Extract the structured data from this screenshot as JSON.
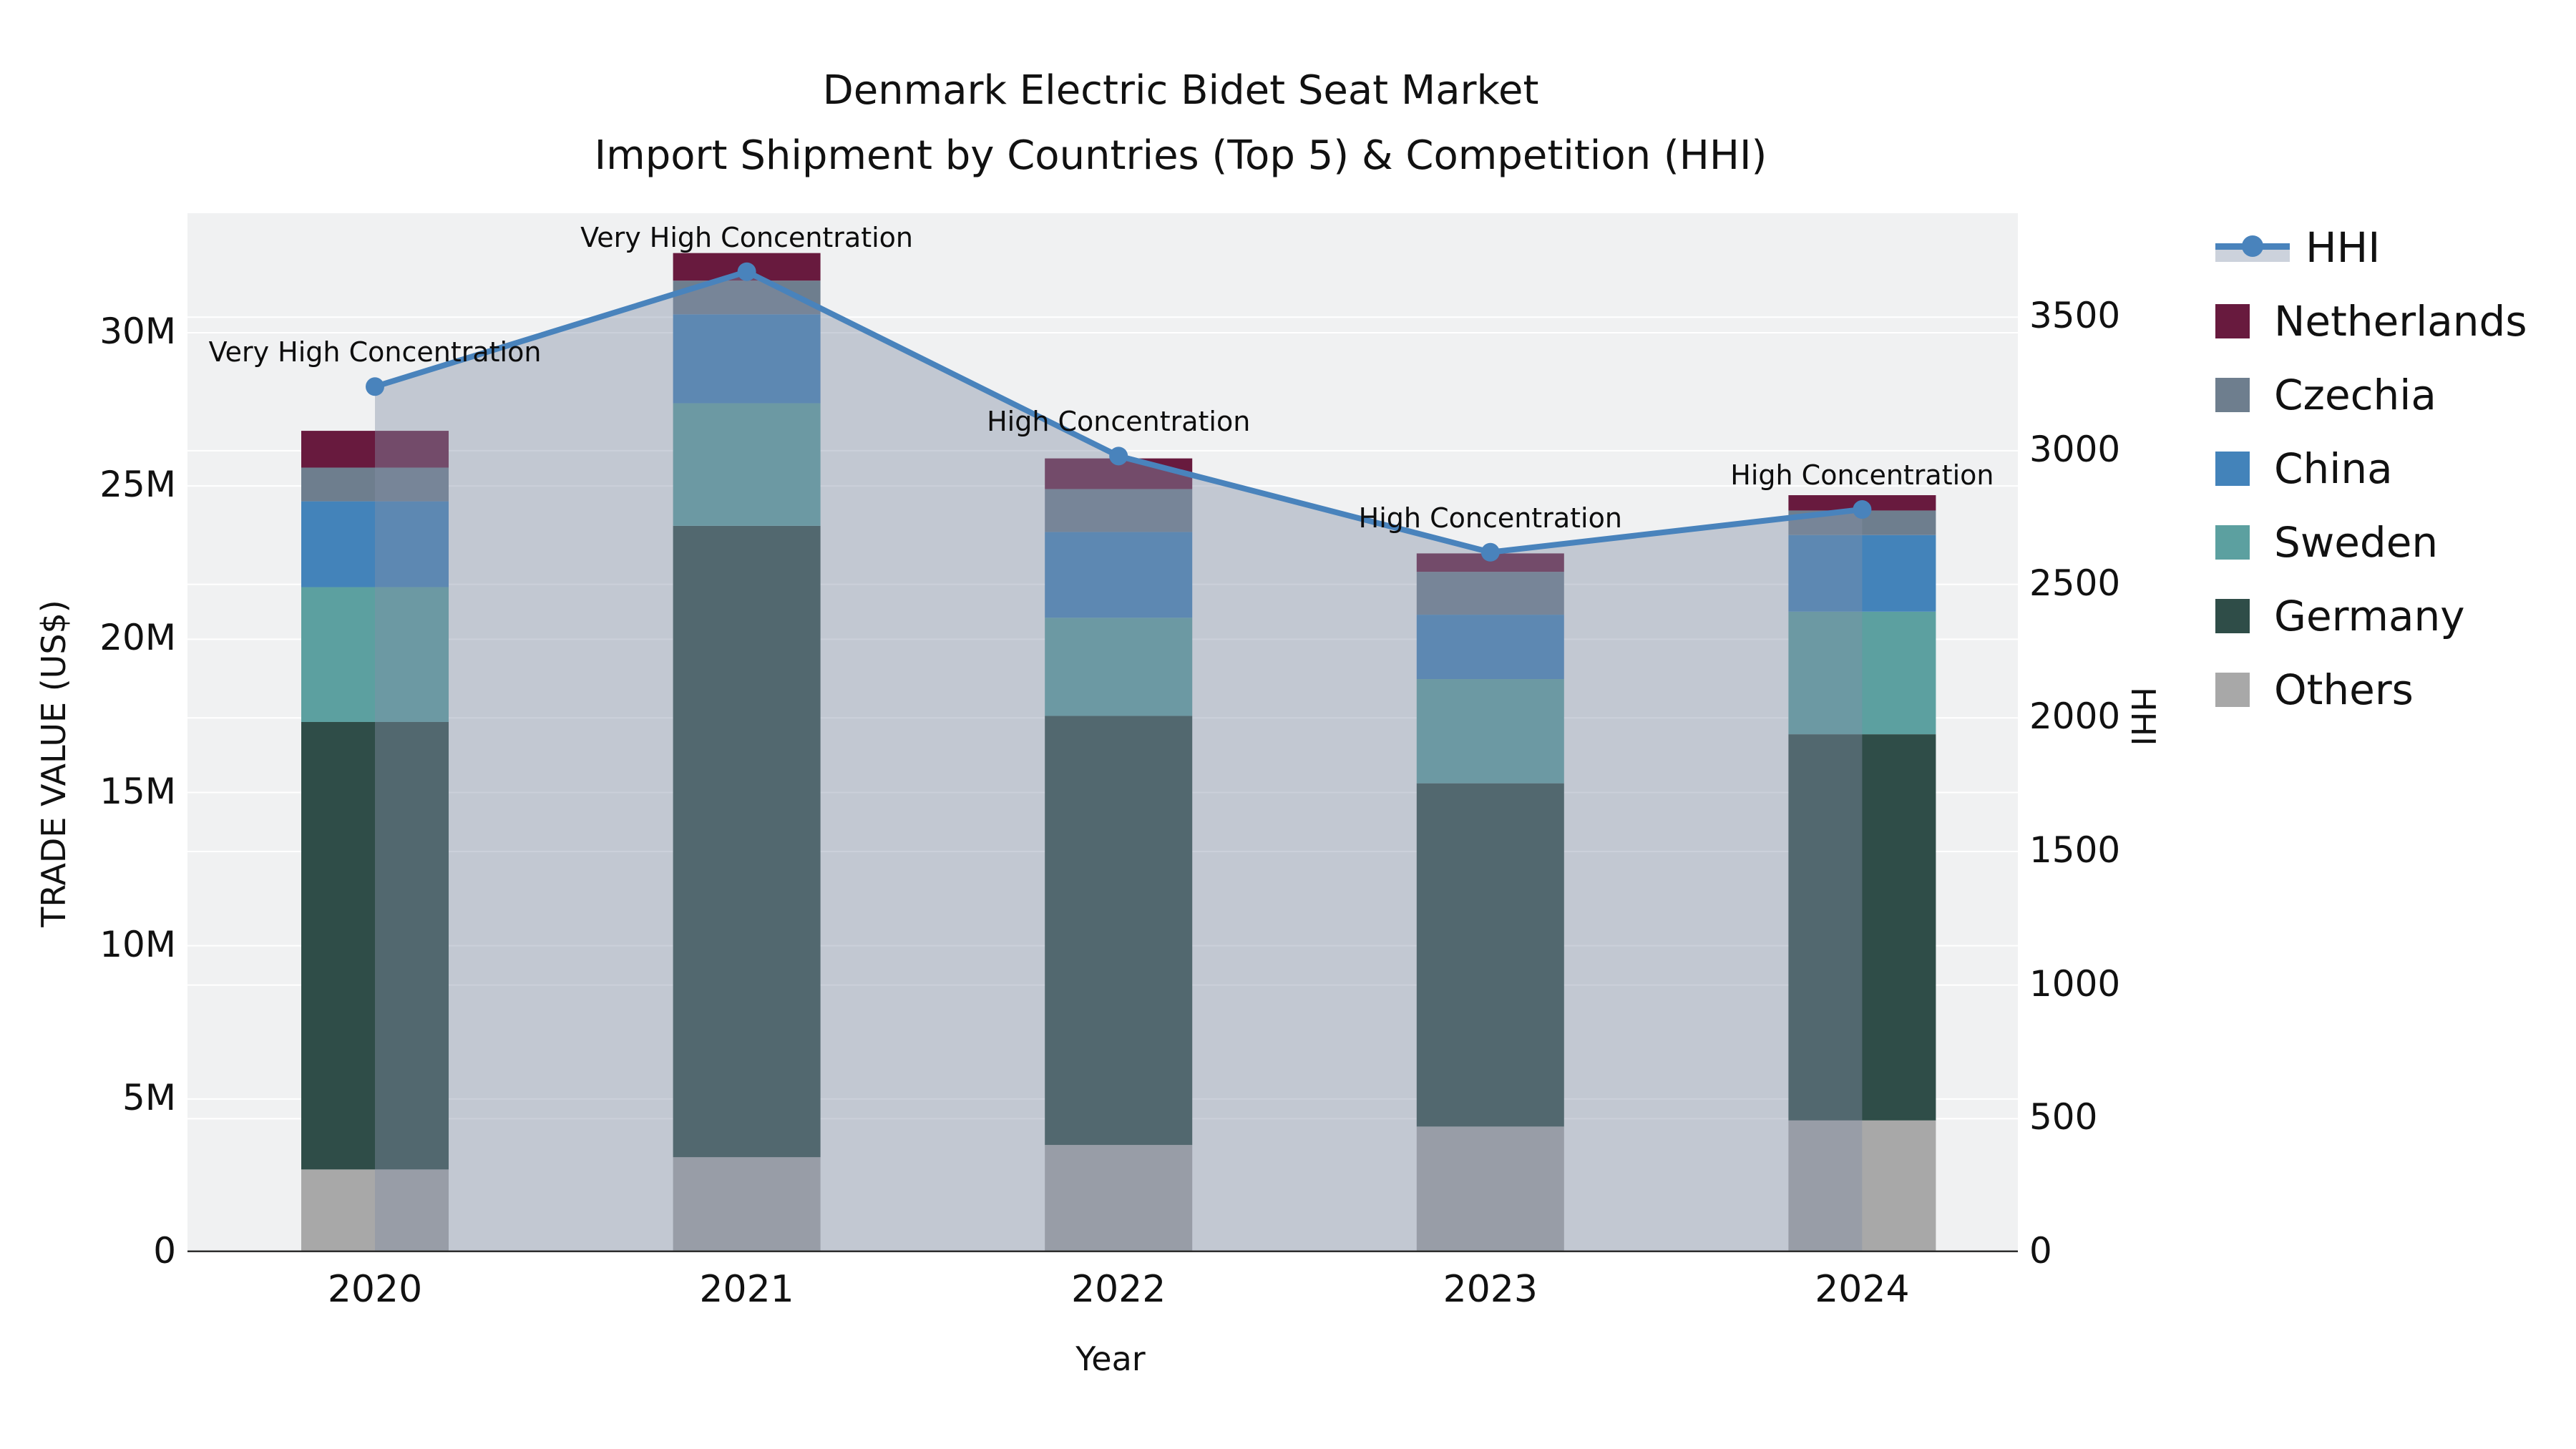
{
  "title": "Denmark Electric Bidet Seat Market",
  "subtitle": "Import Shipment by Countries (Top 5) & Competition (HHI)",
  "axes": {
    "x_label": "Year",
    "y_left_label": "TRADE VALUE (US$)",
    "y_right_label": "HHI",
    "y_left_ticks": [
      {
        "label": "0",
        "value": 0
      },
      {
        "label": "5M",
        "value": 5
      },
      {
        "label": "10M",
        "value": 10
      },
      {
        "label": "15M",
        "value": 15
      },
      {
        "label": "20M",
        "value": 20
      },
      {
        "label": "25M",
        "value": 25
      },
      {
        "label": "30M",
        "value": 30
      }
    ],
    "y_right_ticks": [
      {
        "label": "0",
        "value": 0
      },
      {
        "label": "500",
        "value": 500
      },
      {
        "label": "1000",
        "value": 1000
      },
      {
        "label": "1500",
        "value": 1500
      },
      {
        "label": "2000",
        "value": 2000
      },
      {
        "label": "2500",
        "value": 2500
      },
      {
        "label": "3000",
        "value": 3000
      },
      {
        "label": "3500",
        "value": 3500
      }
    ]
  },
  "colors": {
    "plot_background": "#f0f1f2",
    "gridline": "#ffffff",
    "axis_spine": "#2e2e2e",
    "hhi_line": "#4983bc",
    "hhi_area": "rgba(132,144,168,0.42)",
    "netherlands": "#681a3e",
    "czechia": "#6e7e8e",
    "china": "#4383ba",
    "sweden": "#5ca0a0",
    "germany": "#2f4d48",
    "others": "#a8a8a8",
    "legend_band": "#ccd2dc"
  },
  "legend": {
    "items": [
      {
        "label": "HHI",
        "type": "line",
        "color": "#4983bc"
      },
      {
        "label": "Netherlands",
        "type": "square",
        "color": "#681a3e"
      },
      {
        "label": "Czechia",
        "type": "square",
        "color": "#6e7e8e"
      },
      {
        "label": "China",
        "type": "square",
        "color": "#4383ba"
      },
      {
        "label": "Sweden",
        "type": "square",
        "color": "#5ca0a0"
      },
      {
        "label": "Germany",
        "type": "square",
        "color": "#2f4d48"
      },
      {
        "label": "Others",
        "type": "square",
        "color": "#a8a8a8"
      }
    ]
  },
  "chart_data": {
    "type": "bar",
    "subtype": "stacked-bars-with-line-overlay",
    "title": "Denmark Electric Bidet Seat Market",
    "subtitle": "Import Shipment by Countries (Top 5) & Competition (HHI)",
    "xlabel": "Year",
    "ylabel": "TRADE VALUE (US$)",
    "ylabel_right": "HHI",
    "categories": [
      "2020",
      "2021",
      "2022",
      "2023",
      "2024"
    ],
    "bar_unit": "million US$",
    "ylim_left": [
      0,
      30
    ],
    "ylim_right": [
      0,
      3500
    ],
    "grid": true,
    "legend_position": "right",
    "series": [
      {
        "name": "Others",
        "color": "#a8a8a8",
        "values": [
          2.7,
          3.1,
          3.5,
          4.1,
          4.3
        ]
      },
      {
        "name": "Germany",
        "color": "#2f4d48",
        "values": [
          14.6,
          20.6,
          14.0,
          11.2,
          12.6
        ]
      },
      {
        "name": "Sweden",
        "color": "#5ca0a0",
        "values": [
          4.4,
          4.0,
          3.2,
          3.4,
          4.0
        ]
      },
      {
        "name": "China",
        "color": "#4383ba",
        "values": [
          2.8,
          2.9,
          2.8,
          2.1,
          2.5
        ]
      },
      {
        "name": "Czechia",
        "color": "#6e7e8e",
        "values": [
          1.1,
          1.1,
          1.4,
          1.4,
          0.8
        ]
      },
      {
        "name": "Netherlands",
        "color": "#681a3e",
        "values": [
          1.2,
          0.9,
          1.0,
          0.6,
          0.5
        ]
      }
    ],
    "bar_totals": [
      26.8,
      32.6,
      25.9,
      22.8,
      24.7
    ],
    "line": {
      "name": "HHI",
      "color": "#4983bc",
      "axis": "right",
      "values": [
        3240,
        3670,
        2980,
        2620,
        2780
      ],
      "area_fill": true
    },
    "annotations": [
      {
        "category": "2020",
        "text": "Very High Concentration"
      },
      {
        "category": "2021",
        "text": "Very High Concentration"
      },
      {
        "category": "2022",
        "text": "High Concentration"
      },
      {
        "category": "2023",
        "text": "High Concentration"
      },
      {
        "category": "2024",
        "text": "High Concentration"
      }
    ]
  }
}
